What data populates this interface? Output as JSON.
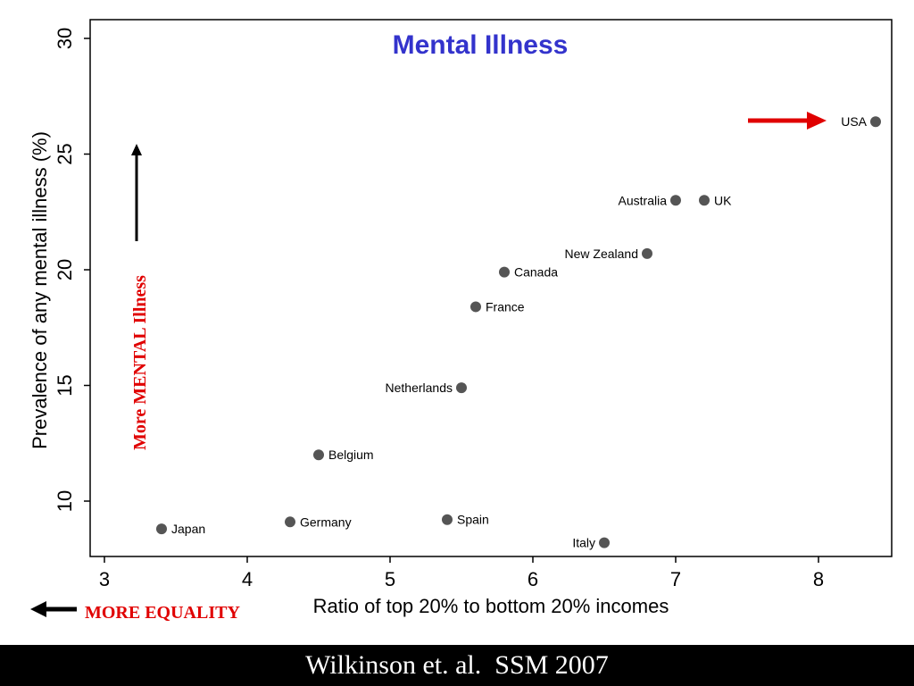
{
  "colors": {
    "title": "#3333cc",
    "marker": "#555555",
    "annotation_red": "#e00000",
    "arrow_black": "#000000"
  },
  "annotations": {
    "more_mental_illness": "More MENTAL Illness",
    "more_equality": "MORE EQUALITY"
  },
  "footer": {
    "citation": "Wilkinson et. al.  SSM 2007"
  },
  "chart_data": {
    "type": "scatter",
    "title": "Mental Illness",
    "xlabel": "Ratio of top 20% to bottom 20% incomes",
    "ylabel": "Prevalence of any mental illness (%)",
    "xlim": [
      2.9,
      8.5
    ],
    "ylim": [
      7.5,
      30
    ],
    "xticks": [
      3,
      4,
      5,
      6,
      7,
      8
    ],
    "yticks": [
      10,
      15,
      20,
      25,
      30
    ],
    "grid": false,
    "points": [
      {
        "label": "USA",
        "x": 8.4,
        "y": 26.4,
        "label_side": "left"
      },
      {
        "label": "Australia",
        "x": 7.0,
        "y": 23.0,
        "label_side": "left"
      },
      {
        "label": "UK",
        "x": 7.2,
        "y": 23.0,
        "label_side": "right"
      },
      {
        "label": "New Zealand",
        "x": 6.8,
        "y": 20.7,
        "label_side": "left"
      },
      {
        "label": "Canada",
        "x": 5.8,
        "y": 19.9,
        "label_side": "right"
      },
      {
        "label": "France",
        "x": 5.6,
        "y": 18.4,
        "label_side": "right"
      },
      {
        "label": "Netherlands",
        "x": 5.5,
        "y": 14.9,
        "label_side": "left"
      },
      {
        "label": "Belgium",
        "x": 4.5,
        "y": 12.0,
        "label_side": "right"
      },
      {
        "label": "Japan",
        "x": 3.4,
        "y": 8.8,
        "label_side": "right"
      },
      {
        "label": "Germany",
        "x": 4.3,
        "y": 9.1,
        "label_side": "right"
      },
      {
        "label": "Spain",
        "x": 5.4,
        "y": 9.2,
        "label_side": "right"
      },
      {
        "label": "Italy",
        "x": 6.5,
        "y": 8.2,
        "label_side": "left"
      }
    ]
  }
}
